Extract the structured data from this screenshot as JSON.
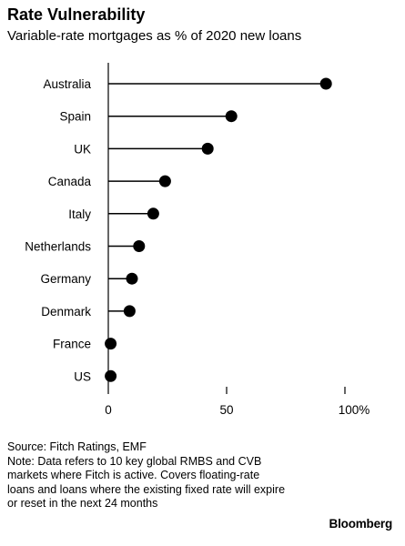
{
  "title": "Rate Vulnerability",
  "subtitle": "Variable-rate mortgages as % of 2020 new loans",
  "chart_data": {
    "type": "lollipop",
    "title": "Rate Vulnerability",
    "subtitle": "Variable-rate mortgages as % of 2020 new loans",
    "xlabel": "",
    "ylabel": "",
    "xlim": [
      0,
      100
    ],
    "x_ticks": [
      0,
      50,
      100
    ],
    "x_tick_labels": [
      "0",
      "50",
      "100%"
    ],
    "grid": false,
    "categories": [
      "Australia",
      "Spain",
      "UK",
      "Canada",
      "Italy",
      "Netherlands",
      "Germany",
      "Denmark",
      "France",
      "US"
    ],
    "values": [
      92,
      52,
      42,
      24,
      19,
      13,
      10,
      9,
      1,
      1
    ],
    "color": "#000000"
  },
  "footer": {
    "source": "Source: Fitch Ratings, EMF",
    "note": "Note: Data refers to 10 key global RMBS and CVB markets where Fitch is active. Covers floating-rate loans and loans where the existing fixed rate will expire or reset in the next 24 months",
    "brand": "Bloomberg"
  }
}
